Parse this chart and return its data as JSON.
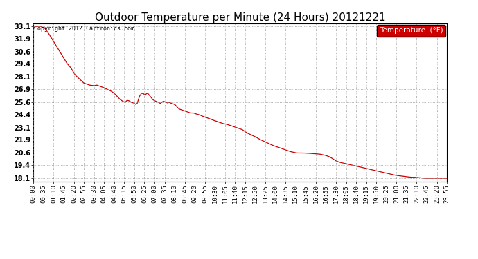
{
  "title": "Outdoor Temperature per Minute (24 Hours) 20121221",
  "copyright_text": "Copyright 2012 Cartronics.com",
  "legend_label": "Temperature  (°F)",
  "ylabel_ticks": [
    18.1,
    19.4,
    20.6,
    21.9,
    23.1,
    24.4,
    25.6,
    26.9,
    28.1,
    29.4,
    30.6,
    31.9,
    33.1
  ],
  "ylim": [
    17.8,
    33.4
  ],
  "line_color": "#cc0000",
  "background_color": "#ffffff",
  "grid_color": "#999999",
  "title_fontsize": 11,
  "tick_fontsize": 6.5,
  "x_tick_interval_minutes": 35,
  "total_minutes": 1435,
  "key_points": [
    [
      0,
      33.0
    ],
    [
      10,
      33.1
    ],
    [
      25,
      33.1
    ],
    [
      40,
      32.9
    ],
    [
      55,
      32.3
    ],
    [
      70,
      31.6
    ],
    [
      85,
      30.9
    ],
    [
      100,
      30.2
    ],
    [
      115,
      29.5
    ],
    [
      130,
      29.0
    ],
    [
      145,
      28.3
    ],
    [
      160,
      27.9
    ],
    [
      175,
      27.5
    ],
    [
      185,
      27.4
    ],
    [
      195,
      27.3
    ],
    [
      210,
      27.25
    ],
    [
      220,
      27.3
    ],
    [
      230,
      27.2
    ],
    [
      240,
      27.1
    ],
    [
      255,
      26.9
    ],
    [
      270,
      26.7
    ],
    [
      280,
      26.5
    ],
    [
      290,
      26.2
    ],
    [
      300,
      25.9
    ],
    [
      310,
      25.7
    ],
    [
      318,
      25.6
    ],
    [
      325,
      25.8
    ],
    [
      332,
      25.75
    ],
    [
      340,
      25.6
    ],
    [
      347,
      25.55
    ],
    [
      355,
      25.4
    ],
    [
      360,
      25.5
    ],
    [
      368,
      26.2
    ],
    [
      375,
      26.5
    ],
    [
      382,
      26.45
    ],
    [
      388,
      26.3
    ],
    [
      393,
      26.5
    ],
    [
      398,
      26.45
    ],
    [
      405,
      26.2
    ],
    [
      415,
      25.85
    ],
    [
      425,
      25.7
    ],
    [
      435,
      25.6
    ],
    [
      440,
      25.5
    ],
    [
      447,
      25.65
    ],
    [
      452,
      25.7
    ],
    [
      460,
      25.6
    ],
    [
      465,
      25.55
    ],
    [
      472,
      25.6
    ],
    [
      478,
      25.5
    ],
    [
      485,
      25.45
    ],
    [
      492,
      25.35
    ],
    [
      498,
      25.15
    ],
    [
      505,
      24.95
    ],
    [
      515,
      24.85
    ],
    [
      525,
      24.75
    ],
    [
      535,
      24.65
    ],
    [
      545,
      24.55
    ],
    [
      555,
      24.55
    ],
    [
      560,
      24.5
    ],
    [
      565,
      24.45
    ],
    [
      572,
      24.4
    ],
    [
      578,
      24.35
    ],
    [
      585,
      24.25
    ],
    [
      595,
      24.15
    ],
    [
      605,
      24.05
    ],
    [
      618,
      23.9
    ],
    [
      628,
      23.8
    ],
    [
      638,
      23.7
    ],
    [
      648,
      23.6
    ],
    [
      658,
      23.5
    ],
    [
      668,
      23.45
    ],
    [
      680,
      23.35
    ],
    [
      695,
      23.2
    ],
    [
      705,
      23.1
    ],
    [
      715,
      23.0
    ],
    [
      725,
      22.9
    ],
    [
      740,
      22.6
    ],
    [
      755,
      22.4
    ],
    [
      770,
      22.2
    ],
    [
      785,
      21.95
    ],
    [
      800,
      21.75
    ],
    [
      815,
      21.55
    ],
    [
      830,
      21.35
    ],
    [
      845,
      21.2
    ],
    [
      860,
      21.05
    ],
    [
      875,
      20.9
    ],
    [
      890,
      20.75
    ],
    [
      905,
      20.65
    ],
    [
      915,
      20.6
    ],
    [
      935,
      20.6
    ],
    [
      950,
      20.58
    ],
    [
      965,
      20.55
    ],
    [
      980,
      20.52
    ],
    [
      995,
      20.48
    ],
    [
      1005,
      20.42
    ],
    [
      1015,
      20.35
    ],
    [
      1025,
      20.25
    ],
    [
      1035,
      20.1
    ],
    [
      1048,
      19.85
    ],
    [
      1060,
      19.7
    ],
    [
      1075,
      19.6
    ],
    [
      1090,
      19.5
    ],
    [
      1105,
      19.4
    ],
    [
      1120,
      19.3
    ],
    [
      1135,
      19.2
    ],
    [
      1150,
      19.1
    ],
    [
      1165,
      19.0
    ],
    [
      1180,
      18.9
    ],
    [
      1195,
      18.8
    ],
    [
      1210,
      18.7
    ],
    [
      1225,
      18.6
    ],
    [
      1240,
      18.5
    ],
    [
      1255,
      18.4
    ],
    [
      1268,
      18.35
    ],
    [
      1282,
      18.3
    ],
    [
      1295,
      18.25
    ],
    [
      1310,
      18.2
    ],
    [
      1325,
      18.2
    ],
    [
      1340,
      18.15
    ],
    [
      1355,
      18.1
    ],
    [
      1380,
      18.1
    ],
    [
      1400,
      18.1
    ],
    [
      1420,
      18.1
    ],
    [
      1435,
      18.1
    ]
  ]
}
